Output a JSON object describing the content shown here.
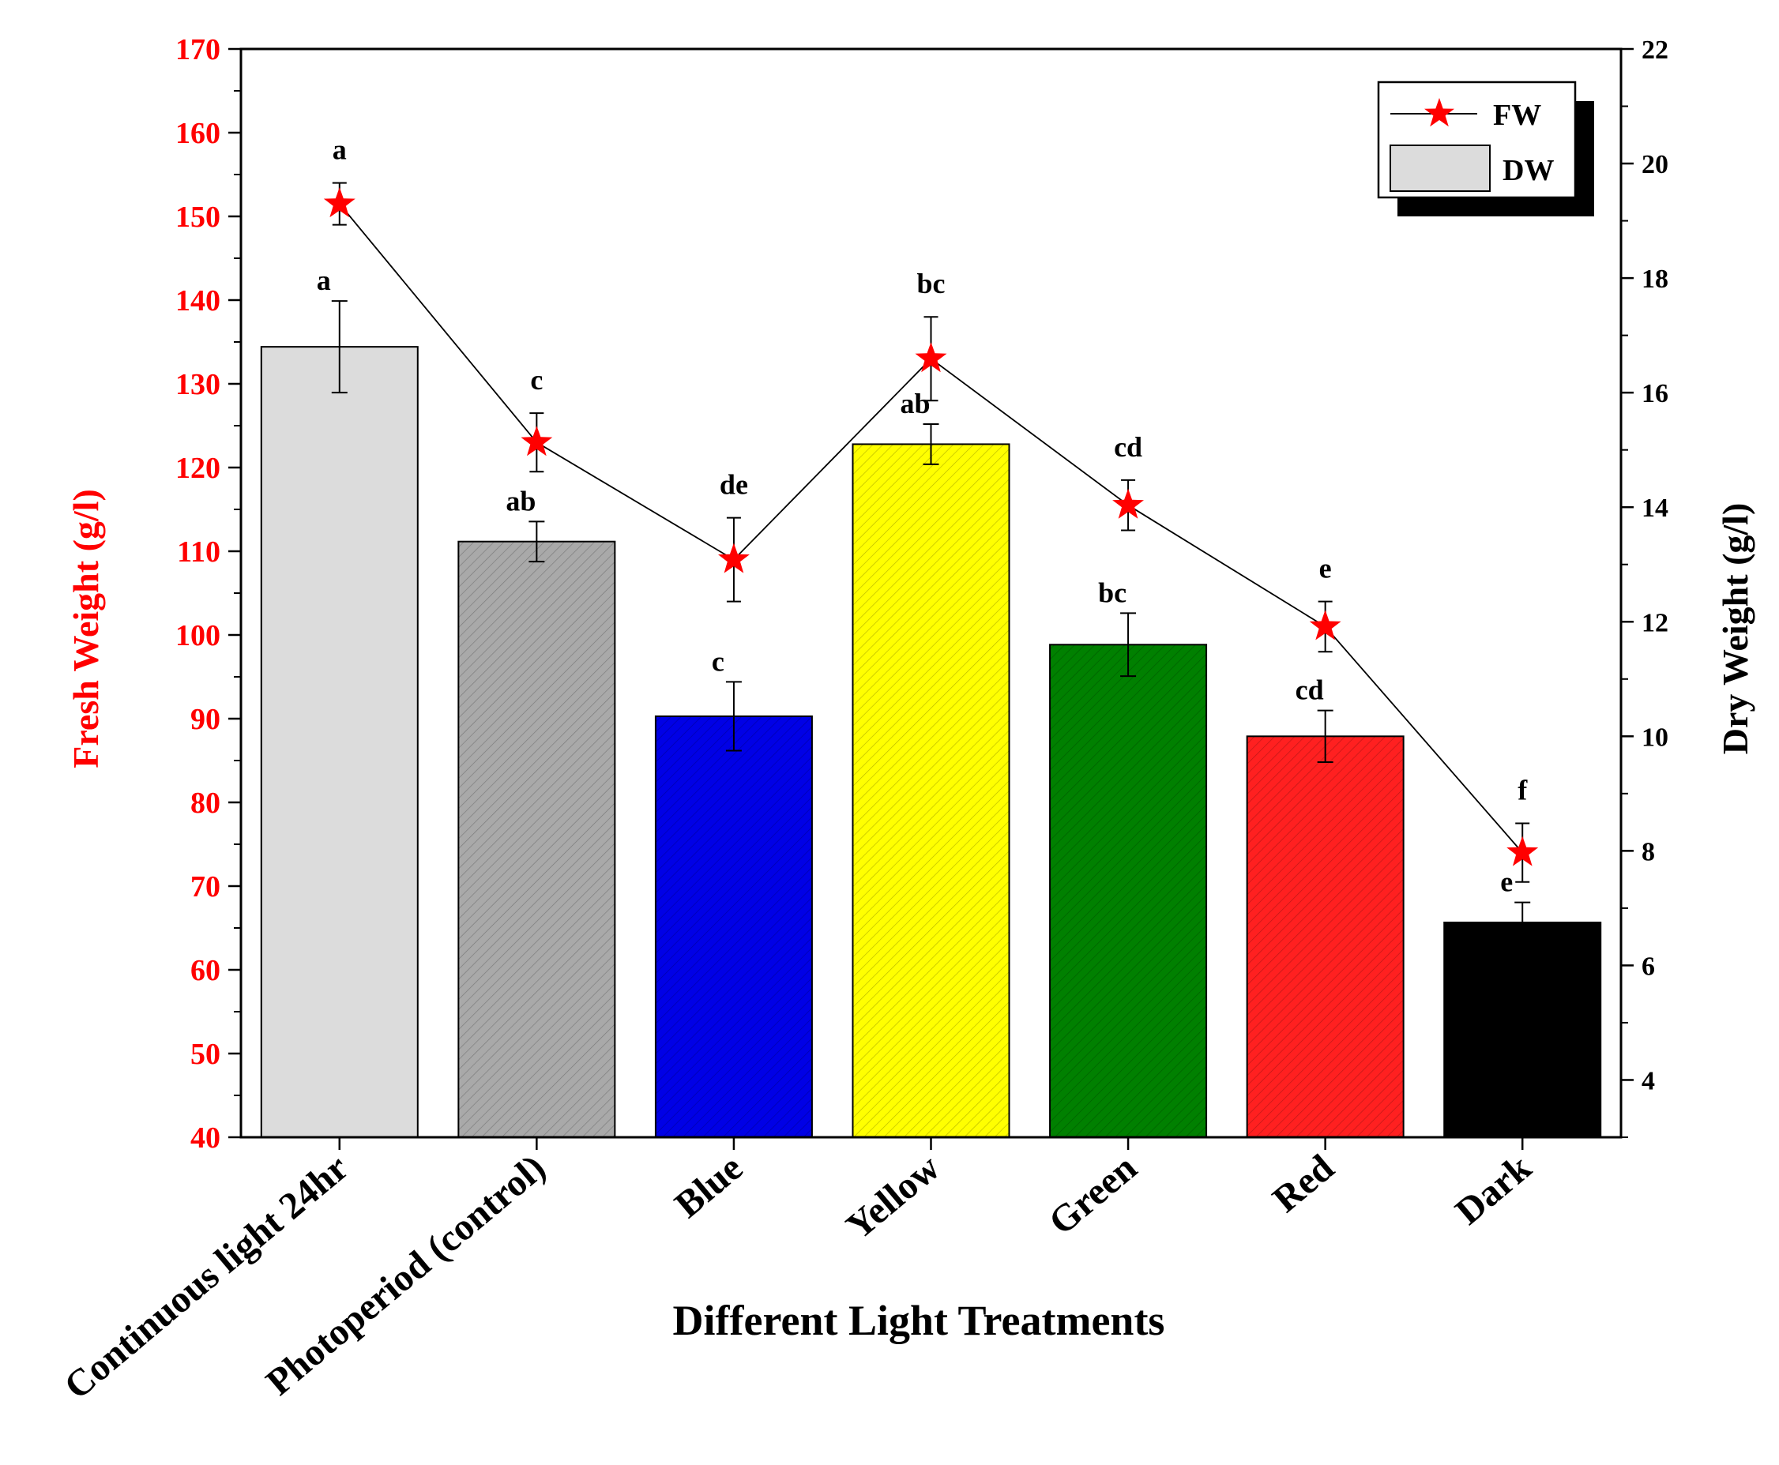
{
  "chart_data": {
    "type": "bar",
    "xlabel": "Different Light Treatments",
    "ylabel_left": "Fresh Weight (g/l)",
    "ylabel_right": "Dry Weight (g/l)",
    "left_axis": {
      "min": 40,
      "max": 170,
      "ticks": [
        40,
        50,
        60,
        70,
        80,
        90,
        100,
        110,
        120,
        130,
        140,
        150,
        160,
        170
      ]
    },
    "right_axis": {
      "min": 3,
      "max": 22,
      "ticks": [
        4,
        6,
        8,
        10,
        12,
        14,
        16,
        18,
        20,
        22
      ]
    },
    "categories": [
      "Continuous light 24hr",
      "Photoperiod (control)",
      "Blue",
      "Yellow",
      "Green",
      "Red",
      "Dark"
    ],
    "series": [
      {
        "name": "DW",
        "type": "bar",
        "axis": "right",
        "values": [
          16.8,
          13.4,
          10.35,
          15.1,
          11.6,
          10.0,
          6.75
        ],
        "errors": [
          0.8,
          0.35,
          0.6,
          0.35,
          0.55,
          0.45,
          0.35
        ],
        "letters": [
          "a",
          "ab",
          "c",
          "ab",
          "bc",
          "cd",
          "e"
        ],
        "colors": [
          "#dcdcdc",
          "#a9a9a9",
          "#0000e6",
          "#ffff00",
          "#008000",
          "#ff2020",
          "#000000"
        ]
      },
      {
        "name": "FW",
        "type": "line",
        "axis": "left",
        "values": [
          151.5,
          123,
          109,
          133,
          115.5,
          101,
          74
        ],
        "errors": [
          2.5,
          3.5,
          5,
          5,
          3,
          3,
          3.5
        ],
        "letters": [
          "a",
          "c",
          "de",
          "bc",
          "cd",
          "e",
          "f"
        ],
        "marker_color": "#ff0000"
      }
    ],
    "legend": {
      "position": "top-right",
      "entries": [
        "FW",
        "DW"
      ]
    }
  }
}
